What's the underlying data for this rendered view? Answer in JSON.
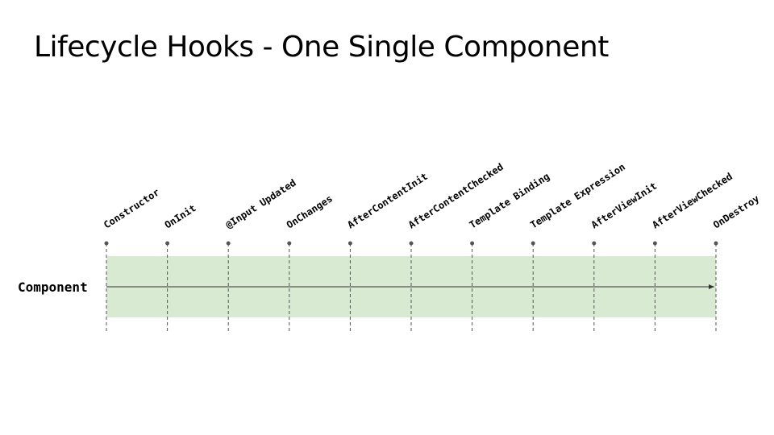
{
  "title": "Lifecycle Hooks - One Single Component",
  "component_label": "Component",
  "band_color": "#d9ead3",
  "hooks": [
    "Constructor",
    "OnInit",
    "@Input Updated",
    "OnChanges",
    "AfterContentInit",
    "AfterContentChecked",
    "Template Binding",
    "Template Expression",
    "AfterViewInit",
    "AfterViewChecked",
    "OnDestroy"
  ]
}
